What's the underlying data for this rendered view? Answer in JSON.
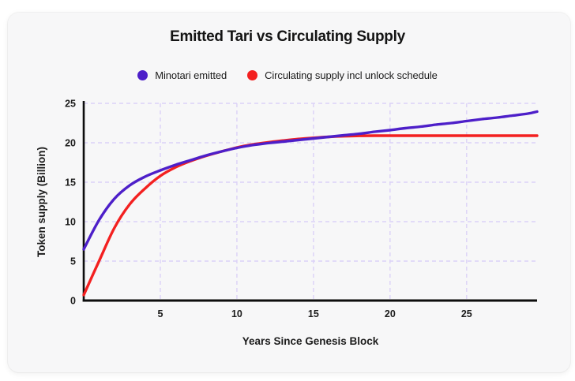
{
  "chart_data": {
    "type": "line",
    "title": "Emitted Tari vs Circulating Supply",
    "xlabel": "Years Since Genesis Block",
    "ylabel": "Token supply (Billion)",
    "xlim": [
      0,
      29.6
    ],
    "ylim": [
      0,
      25
    ],
    "xticks": [
      5,
      10,
      15,
      20,
      25
    ],
    "yticks": [
      0,
      5,
      10,
      15,
      20,
      25
    ],
    "grid": true,
    "grid_color": "#dcd2f7",
    "axis_color": "#0d0d0d",
    "tick_label_color": "#1c1c1c",
    "legend_position": "top",
    "x": [
      0,
      1,
      2,
      3,
      4,
      5,
      6,
      7,
      8,
      9,
      10,
      11,
      12,
      13,
      14,
      15,
      16,
      17,
      18,
      19,
      20,
      21,
      22,
      23,
      24,
      25,
      26,
      27,
      28,
      29,
      29.6
    ],
    "series": [
      {
        "name": "Minotari emitted",
        "color": "#4d1fc9",
        "y": [
          6.5,
          10.2,
          12.9,
          14.6,
          15.7,
          16.5,
          17.2,
          17.8,
          18.4,
          18.9,
          19.35,
          19.7,
          19.95,
          20.15,
          20.35,
          20.55,
          20.75,
          20.95,
          21.15,
          21.4,
          21.6,
          21.85,
          22.05,
          22.3,
          22.5,
          22.75,
          23.0,
          23.2,
          23.45,
          23.7,
          23.95
        ]
      },
      {
        "name": "Circulating supply incl unlock schedule",
        "color": "#f32020",
        "y": [
          0.7,
          5.0,
          9.2,
          12.2,
          14.2,
          15.8,
          16.9,
          17.7,
          18.35,
          18.9,
          19.4,
          19.78,
          20.05,
          20.28,
          20.48,
          20.63,
          20.75,
          20.83,
          20.88,
          20.9,
          20.9,
          20.9,
          20.9,
          20.9,
          20.9,
          20.9,
          20.9,
          20.9,
          20.9,
          20.9,
          20.9
        ]
      }
    ]
  }
}
